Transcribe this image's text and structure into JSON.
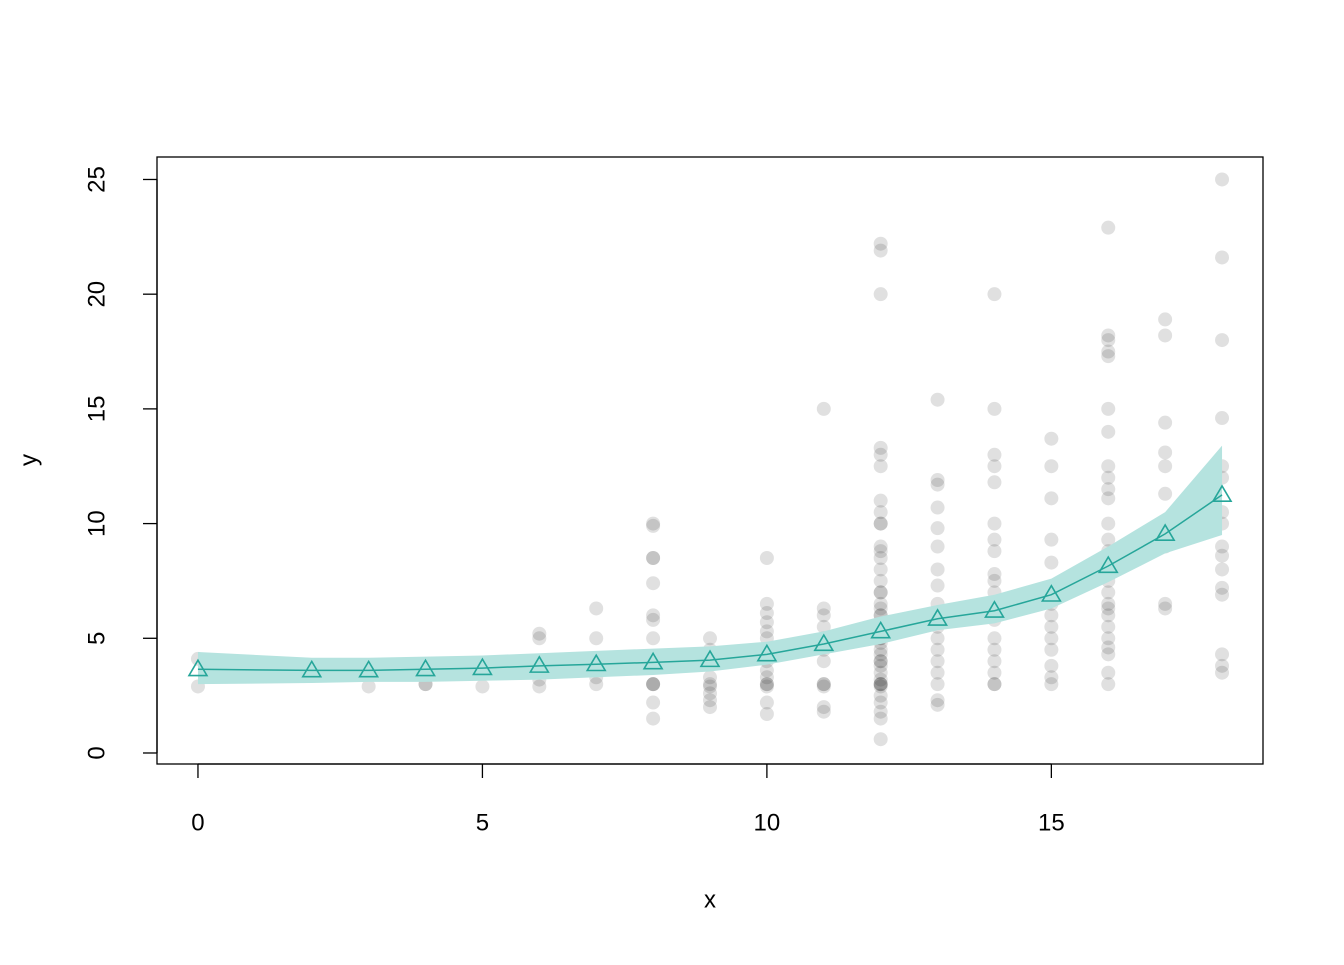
{
  "chart_data": {
    "type": "scatter",
    "xlabel": "x",
    "ylabel": "y",
    "xlim": [
      -0.72,
      18.72
    ],
    "ylim": [
      -0.48,
      25.98
    ],
    "xticks": [
      0,
      5,
      10,
      15
    ],
    "yticks": [
      0,
      5,
      10,
      15,
      20,
      25
    ],
    "series": [
      {
        "type": "scatter",
        "color": "#0000001f",
        "x": [
          0,
          0,
          3,
          4,
          4,
          5,
          6,
          6,
          6,
          6,
          7,
          7,
          7,
          7,
          8,
          8,
          8,
          8,
          8,
          8,
          8,
          8,
          8,
          8,
          8,
          8,
          8,
          8,
          9,
          9,
          9,
          9,
          9,
          9,
          9,
          9,
          9,
          10,
          10,
          10,
          10,
          10,
          10,
          10,
          10,
          10,
          10,
          10,
          10,
          10,
          10,
          10,
          11,
          11,
          11,
          11,
          11,
          11,
          11,
          11,
          11,
          11,
          11,
          11,
          12,
          12,
          12,
          12,
          12,
          12,
          12,
          12,
          12,
          12,
          12,
          12,
          12,
          12,
          12,
          12,
          12,
          12,
          12,
          12,
          12,
          12,
          12,
          12,
          12,
          12,
          12,
          12,
          12,
          12,
          12,
          12,
          12,
          12,
          12,
          12,
          12,
          12,
          12,
          12,
          12,
          13,
          13,
          13,
          13,
          13,
          13,
          13,
          13,
          13,
          13,
          13,
          13,
          13,
          13,
          13,
          13,
          13,
          13,
          14,
          14,
          14,
          14,
          14,
          14,
          14,
          14,
          14,
          14,
          14,
          14,
          14,
          14,
          14,
          14,
          14,
          14,
          14,
          15,
          15,
          15,
          15,
          15,
          15,
          15,
          15,
          15,
          15,
          15,
          15,
          15,
          16,
          16,
          16,
          16,
          16,
          16,
          16,
          16,
          16,
          16,
          16,
          16,
          16,
          16,
          16,
          16,
          16,
          16,
          16,
          16,
          16,
          16,
          16,
          16,
          16,
          16,
          17,
          17,
          17,
          17,
          17,
          17,
          17,
          17,
          17,
          17,
          17,
          18,
          18,
          18,
          18,
          18,
          18,
          18,
          18,
          18,
          18,
          18,
          18,
          18,
          18,
          18,
          18
        ],
        "values": [
          2.9,
          4.1,
          2.9,
          3.0,
          3.0,
          2.9,
          2.9,
          3.2,
          5.0,
          5.2,
          3.0,
          3.3,
          5.0,
          6.3,
          1.5,
          2.2,
          3.0,
          3.0,
          3.0,
          4.0,
          5.0,
          5.8,
          6.0,
          7.4,
          8.5,
          8.5,
          9.9,
          10.0,
          2.0,
          2.3,
          2.6,
          2.9,
          3.0,
          3.3,
          4.0,
          4.5,
          5.0,
          1.7,
          2.2,
          2.9,
          3.0,
          3.0,
          3.3,
          3.6,
          4.0,
          4.5,
          5.0,
          5.3,
          5.7,
          6.1,
          6.5,
          8.5,
          1.8,
          2.0,
          2.9,
          3.0,
          3.0,
          4.0,
          4.5,
          5.0,
          5.5,
          6.0,
          6.3,
          15.0,
          0.6,
          1.5,
          1.8,
          2.2,
          2.5,
          2.9,
          3.0,
          3.0,
          3.0,
          3.2,
          3.5,
          3.8,
          4.0,
          4.0,
          4.3,
          4.5,
          4.8,
          5.0,
          5.0,
          5.5,
          6.0,
          6.0,
          6.3,
          6.5,
          7.0,
          7.0,
          7.5,
          8.0,
          8.5,
          8.8,
          9.0,
          10.0,
          10.0,
          10.5,
          11.0,
          12.5,
          13.0,
          13.3,
          20.0,
          21.9,
          22.2,
          2.1,
          2.3,
          3.0,
          3.5,
          4.0,
          4.5,
          5.0,
          5.5,
          6.0,
          6.5,
          7.3,
          8.0,
          9.0,
          9.8,
          10.7,
          11.7,
          11.9,
          15.4,
          3.0,
          3.0,
          3.5,
          4.0,
          4.5,
          5.0,
          5.8,
          6.5,
          7.0,
          7.5,
          7.8,
          8.8,
          9.3,
          10.0,
          11.8,
          12.5,
          13.0,
          15.0,
          20.0,
          3.0,
          3.3,
          3.8,
          4.5,
          5.0,
          5.5,
          6.0,
          6.5,
          8.3,
          9.3,
          11.1,
          12.5,
          13.7,
          3.0,
          3.5,
          4.3,
          4.6,
          5.0,
          5.5,
          6.0,
          6.3,
          6.5,
          7.0,
          7.5,
          8.0,
          8.8,
          9.3,
          10.0,
          11.1,
          11.5,
          12.0,
          12.5,
          14.0,
          15.0,
          17.3,
          17.5,
          18.0,
          18.2,
          22.9,
          6.3,
          6.5,
          9.0,
          9.5,
          10.0,
          11.3,
          12.5,
          13.1,
          14.4,
          18.2,
          18.9,
          3.5,
          3.8,
          4.3,
          6.9,
          7.2,
          8.0,
          8.6,
          9.0,
          10.0,
          10.5,
          12.0,
          12.5,
          14.6,
          18.0,
          21.6,
          25.0
        ]
      },
      {
        "type": "line",
        "color": "#26a69a",
        "band_color": "#b5e3df",
        "x": [
          0,
          2,
          3,
          4,
          5,
          6,
          7,
          8,
          9,
          10,
          11,
          12,
          13,
          14,
          15,
          16,
          17,
          18
        ],
        "values": [
          3.65,
          3.6,
          3.6,
          3.65,
          3.7,
          3.8,
          3.87,
          3.95,
          4.05,
          4.3,
          4.75,
          5.3,
          5.85,
          6.2,
          6.9,
          8.15,
          9.55,
          11.25
        ],
        "lower": [
          3.0,
          3.05,
          3.1,
          3.1,
          3.15,
          3.2,
          3.3,
          3.4,
          3.55,
          3.85,
          4.3,
          4.75,
          5.35,
          5.65,
          6.3,
          7.45,
          8.7,
          9.5
        ],
        "upper": [
          4.4,
          4.15,
          4.15,
          4.2,
          4.25,
          4.35,
          4.45,
          4.55,
          4.65,
          4.85,
          5.3,
          5.95,
          6.45,
          6.9,
          7.6,
          9.0,
          10.5,
          13.4
        ]
      }
    ]
  }
}
